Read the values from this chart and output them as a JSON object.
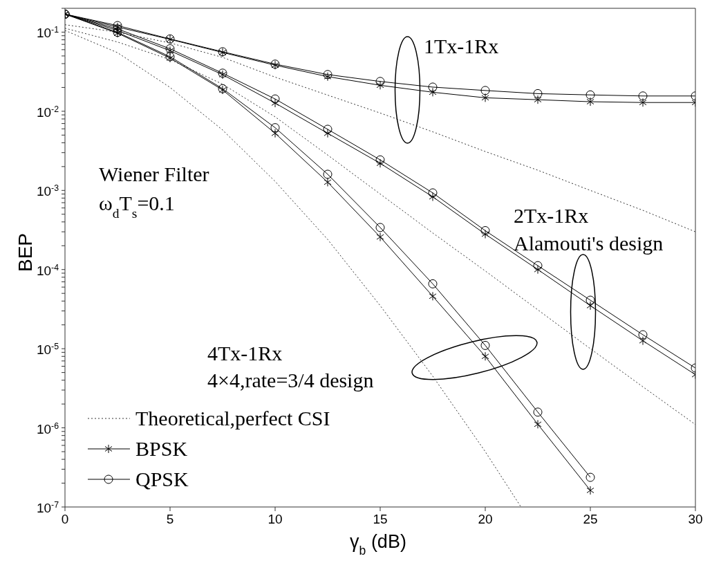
{
  "chart_data": {
    "type": "line",
    "xlabel": "γ$_{b}$ (dB)",
    "ylabel": "BEP",
    "x": [
      0,
      2.5,
      5,
      7.5,
      10,
      12.5,
      15,
      17.5,
      20,
      22.5,
      25,
      27.5,
      30
    ],
    "series": [
      {
        "name": "Theoretical,perfect CSI",
        "color": "#333333",
        "marker": "none",
        "line_style": "dotted",
        "values": [
          0.124,
          0.1,
          0.073,
          0.048,
          0.027,
          0.016,
          0.0095,
          0.0055,
          0.0031,
          0.0018,
          0.001,
          0.00056,
          0.0003
        ]
      },
      {
        "color": "#333333",
        "marker": "none",
        "line_style": "dotted",
        "values": [
          0.112,
          0.075,
          0.045,
          0.022,
          0.0085,
          0.0028,
          0.0009,
          0.00029,
          9.6e-05,
          3.1e-05,
          1e-05,
          3.3e-06,
          1.1e-06
        ]
      },
      {
        "color": "#333333",
        "marker": "none",
        "line_style": "dotted",
        "x": [
          0,
          2.5,
          5,
          7.5,
          10,
          12.5,
          15,
          17.5,
          20,
          21.7
        ],
        "values": [
          0.105,
          0.055,
          0.02,
          0.0058,
          0.0013,
          0.00024,
          3.5e-05,
          4.5e-06,
          5e-07,
          1e-07
        ]
      },
      {
        "name": "BPSK",
        "color": "#000000",
        "marker": "cross",
        "line_style": "solid",
        "values": [
          0.169,
          0.116,
          0.081,
          0.0553,
          0.0382,
          0.0274,
          0.0213,
          0.0174,
          0.0148,
          0.014,
          0.0132,
          0.0129,
          0.0129
        ]
      },
      {
        "color": "#000000",
        "marker": "cross",
        "line_style": "solid",
        "values": [
          0.169,
          0.105,
          0.0583,
          0.029,
          0.0127,
          0.00527,
          0.0022,
          0.00083,
          0.00028,
          0.0001,
          3.5e-05,
          1.26e-05,
          4.7e-06
        ]
      },
      {
        "color": "#000000",
        "marker": "cross",
        "line_style": "solid",
        "x": [
          0,
          2.5,
          5,
          7.5,
          10,
          12.5,
          15,
          17.5,
          20,
          22.5,
          25
        ],
        "values": [
          0.169,
          0.097,
          0.047,
          0.0186,
          0.00527,
          0.00127,
          0.000258,
          4.6e-05,
          8e-06,
          1.11e-06,
          1.62e-07
        ]
      },
      {
        "name": "QPSK",
        "color": "#000000",
        "marker": "circle",
        "line_style": "solid",
        "values": [
          0.169,
          0.121,
          0.082,
          0.0565,
          0.0394,
          0.0291,
          0.0238,
          0.0202,
          0.0183,
          0.0167,
          0.0161,
          0.0156,
          0.0156
        ]
      },
      {
        "color": "#000000",
        "marker": "circle",
        "line_style": "solid",
        "values": [
          0.169,
          0.11,
          0.0616,
          0.0303,
          0.0143,
          0.00592,
          0.00243,
          0.00093,
          0.00031,
          0.000112,
          4.1e-05,
          1.5e-05,
          5.7e-06
        ]
      },
      {
        "color": "#000000",
        "marker": "circle",
        "line_style": "solid",
        "x": [
          0,
          2.5,
          5,
          7.5,
          10,
          12.5,
          15,
          17.5,
          20,
          22.5,
          25
        ],
        "values": [
          0.169,
          0.0994,
          0.0489,
          0.0193,
          0.0062,
          0.0016,
          0.00034,
          6.6e-05,
          1.1e-05,
          1.58e-06,
          2.37e-07
        ]
      }
    ],
    "xlim": [
      0,
      30
    ],
    "xticks": [
      0,
      5,
      10,
      15,
      20,
      25,
      30
    ],
    "ylim": [
      1e-07,
      0.2
    ],
    "log": true,
    "yticks": [
      {
        "value": 1e-07,
        "label": "10$^{-7}$"
      },
      {
        "value": 2e-07,
        "label": null
      },
      {
        "value": 3e-07,
        "label": null
      },
      {
        "value": 4e-07,
        "label": null
      },
      {
        "value": 5e-07,
        "label": null
      },
      {
        "value": 6e-07,
        "label": null
      },
      {
        "value": 7e-07,
        "label": null
      },
      {
        "value": 8e-07,
        "label": null
      },
      {
        "value": 9e-07,
        "label": null
      },
      {
        "value": 1e-06,
        "label": "10$^{-6}$"
      },
      {
        "value": 2e-06,
        "label": null
      },
      {
        "value": 3e-06,
        "label": null
      },
      {
        "value": 4e-06,
        "label": null
      },
      {
        "value": 5e-06,
        "label": null
      },
      {
        "value": 6e-06,
        "label": null
      },
      {
        "value": 7e-06,
        "label": null
      },
      {
        "value": 8e-06,
        "label": null
      },
      {
        "value": 9e-06,
        "label": null
      },
      {
        "value": 1e-05,
        "label": "10$^{-5}$"
      },
      {
        "value": 2e-05,
        "label": null
      },
      {
        "value": 3e-05,
        "label": null
      },
      {
        "value": 4e-05,
        "label": null
      },
      {
        "value": 5e-05,
        "label": null
      },
      {
        "value": 6e-05,
        "label": null
      },
      {
        "value": 7e-05,
        "label": null
      },
      {
        "value": 8e-05,
        "label": null
      },
      {
        "value": 9e-05,
        "label": null
      },
      {
        "value": 0.0001,
        "label": "10$^{-4}$"
      },
      {
        "value": 0.0002,
        "label": null
      },
      {
        "value": 0.0003,
        "label": null
      },
      {
        "value": 0.0004,
        "label": null
      },
      {
        "value": 0.0005,
        "label": null
      },
      {
        "value": 0.0006,
        "label": null
      },
      {
        "value": 0.0007,
        "label": null
      },
      {
        "value": 0.0008,
        "label": null
      },
      {
        "value": 0.0009,
        "label": null
      },
      {
        "value": 0.001,
        "label": "10$^{-3}$"
      },
      {
        "value": 0.002,
        "label": null
      },
      {
        "value": 0.003,
        "label": null
      },
      {
        "value": 0.004,
        "label": null
      },
      {
        "value": 0.005,
        "label": null
      },
      {
        "value": 0.006,
        "label": null
      },
      {
        "value": 0.007,
        "label": null
      },
      {
        "value": 0.008,
        "label": null
      },
      {
        "value": 0.009,
        "label": null
      },
      {
        "value": 0.01,
        "label": "10$^{-2}$"
      },
      {
        "value": 0.02,
        "label": null
      },
      {
        "value": 0.03,
        "label": null
      },
      {
        "value": 0.04,
        "label": null
      },
      {
        "value": 0.05,
        "label": null
      },
      {
        "value": 0.06,
        "label": null
      },
      {
        "value": 0.07,
        "label": null
      },
      {
        "value": 0.08,
        "label": null
      },
      {
        "value": 0.09,
        "label": null
      },
      {
        "value": 0.1,
        "label": "10$^{-1}$"
      },
      {
        "value": 0.2,
        "label": null
      }
    ],
    "legend": "bottom left",
    "annotations": [
      "1Tx-1Rx",
      "2Tx-1Rx",
      "Alamouti's design",
      "4Tx-1Rx",
      "4×4,rate=3/4 design",
      "Wiener Filter",
      "ω$_{d}$T$_{s}$=0.1"
    ]
  }
}
